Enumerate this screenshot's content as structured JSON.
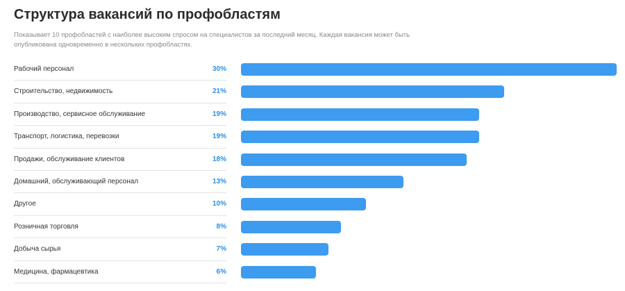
{
  "title": "Структура вакансий по профобластям",
  "subtitle": "Показывает 10 профобластей с наиболее высоким спросом на специалистов за последний месяц. Каждая вакансия может быть опубликована одновременно в нескольких профобластях.",
  "colors": {
    "bar": "#3d9bf0",
    "percent": "#2d8ee8"
  },
  "chart_data": {
    "type": "bar",
    "orientation": "horizontal",
    "categories": [
      "Рабочий персонал",
      "Строительство, недвижимость",
      "Производство, сервисное обслуживание",
      "Транспорт, логистика, перевозки",
      "Продажи, обслуживание клиентов",
      "Домашний, обслуживающий персонал",
      "Другое",
      "Розничная торговля",
      "Добыча сырья",
      "Медицина, фармацевтика"
    ],
    "values": [
      30,
      21,
      19,
      19,
      18,
      13,
      10,
      8,
      7,
      6
    ],
    "value_labels": [
      "30%",
      "21%",
      "19%",
      "19%",
      "18%",
      "13%",
      "10%",
      "8%",
      "7%",
      "6%"
    ],
    "xlim": [
      0,
      30
    ],
    "grid": false,
    "legend": "none"
  }
}
